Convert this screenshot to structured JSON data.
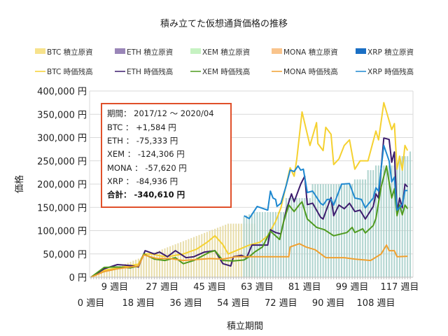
{
  "chart_data": {
    "type": "bar+line",
    "title": "積み立てた仮想通貨価格の推移",
    "xlabel": "積立期間",
    "ylabel": "価格",
    "ylim": [
      0,
      400000
    ],
    "yticks": [
      0,
      50000,
      100000,
      150000,
      200000,
      250000,
      300000,
      350000,
      400000
    ],
    "ytick_suffix": " 円",
    "xlim": [
      0,
      121
    ],
    "xticks": [
      0,
      9,
      18,
      27,
      36,
      45,
      54,
      63,
      72,
      81,
      90,
      99,
      108,
      117
    ],
    "xtick_suffix": " 週目",
    "grid": true,
    "legend_placement": "top",
    "legend": [
      {
        "label": "BTC  積立原資",
        "kind": "bar",
        "color": "#f7e28c"
      },
      {
        "label": "ETH  積立原資",
        "kind": "bar",
        "color": "#9a86b8"
      },
      {
        "label": "XEM  積立原資",
        "kind": "bar",
        "color": "#c6f2c2"
      },
      {
        "label": "MONA  積立原資",
        "kind": "bar",
        "color": "#f9c48c"
      },
      {
        "label": "XRP  積立原資",
        "kind": "bar",
        "color": "#1a6fc4"
      },
      {
        "label": "BTC  時価残高",
        "kind": "line",
        "color": "#f5d130"
      },
      {
        "label": "ETH  時価残高",
        "kind": "line",
        "color": "#3c1c6e"
      },
      {
        "label": "XEM  時価残高",
        "kind": "line",
        "color": "#4e9a1e"
      },
      {
        "label": "MONA  時価残高",
        "kind": "line",
        "color": "#f0a030"
      },
      {
        "label": "XRP  時価残高",
        "kind": "line",
        "color": "#1e88d0"
      }
    ],
    "bar_series": [
      {
        "name": "BTC  積立原資",
        "color": "#e6d9a0",
        "points": [
          [
            0,
            0
          ],
          [
            52,
            115000
          ],
          [
            62,
            115000
          ]
        ]
      },
      {
        "name": "XRP  積立原資",
        "color": "#a7cfca",
        "points": [
          [
            58,
            130000
          ],
          [
            62,
            140000
          ],
          [
            73,
            140000
          ],
          [
            74,
            170000
          ],
          [
            83,
            170000
          ],
          [
            84,
            200000
          ],
          [
            99,
            200000
          ],
          [
            100,
            210000
          ],
          [
            104,
            210000
          ],
          [
            105,
            230000
          ],
          [
            107,
            230000
          ],
          [
            108,
            240000
          ],
          [
            116,
            240000
          ],
          [
            117,
            260000
          ],
          [
            120,
            260000
          ],
          [
            121,
            270000
          ]
        ]
      }
    ],
    "line_series": [
      {
        "name": "BTC  時価残高",
        "color": "#f5d130",
        "points": [
          [
            0,
            0
          ],
          [
            5,
            15000
          ],
          [
            10,
            20000
          ],
          [
            15,
            25000
          ],
          [
            18,
            28000
          ],
          [
            20,
            50000
          ],
          [
            23,
            50000
          ],
          [
            27,
            45000
          ],
          [
            30,
            45000
          ],
          [
            35,
            50000
          ],
          [
            40,
            60000
          ],
          [
            44,
            75000
          ],
          [
            47,
            89000
          ],
          [
            50,
            70000
          ],
          [
            52,
            50000
          ],
          [
            55,
            57000
          ],
          [
            60,
            69000
          ],
          [
            64,
            75000
          ],
          [
            67,
            89000
          ],
          [
            70,
            120000
          ],
          [
            72,
            149000
          ],
          [
            75.5,
            235000
          ],
          [
            77,
            217000
          ],
          [
            78,
            254000
          ],
          [
            80,
            355000
          ],
          [
            83,
            283000
          ],
          [
            85.5,
            332000
          ],
          [
            86,
            287000
          ],
          [
            88,
            272000
          ],
          [
            89,
            322000
          ],
          [
            91,
            307000
          ],
          [
            92,
            242000
          ],
          [
            94,
            254000
          ],
          [
            96,
            283000
          ],
          [
            98,
            295000
          ],
          [
            100,
            232000
          ],
          [
            102,
            250000
          ],
          [
            105,
            250000
          ],
          [
            108,
            314000
          ],
          [
            109,
            295000
          ],
          [
            111,
            375000
          ],
          [
            114,
            317000
          ],
          [
            115,
            330000
          ],
          [
            116,
            232000
          ],
          [
            117,
            260000
          ],
          [
            118,
            230000
          ],
          [
            119,
            283000
          ],
          [
            120,
            272000
          ]
        ]
      },
      {
        "name": "ETH  時価残高",
        "color": "#3c1c6e",
        "points": [
          [
            0,
            0
          ],
          [
            5,
            18000
          ],
          [
            10,
            27000
          ],
          [
            15,
            25000
          ],
          [
            18,
            22000
          ],
          [
            20.5,
            57000
          ],
          [
            24,
            50000
          ],
          [
            26,
            54000
          ],
          [
            29,
            44000
          ],
          [
            32,
            57000
          ],
          [
            36,
            42000
          ],
          [
            39,
            44000
          ],
          [
            43,
            54000
          ],
          [
            47,
            57000
          ],
          [
            50,
            29000
          ],
          [
            53,
            24000
          ],
          [
            54,
            44000
          ],
          [
            57,
            47000
          ],
          [
            59,
            42000
          ],
          [
            61,
            69000
          ],
          [
            63,
            69000
          ],
          [
            67,
            69000
          ],
          [
            68,
            102000
          ],
          [
            70,
            96000
          ],
          [
            72,
            93000
          ],
          [
            74,
            144000
          ],
          [
            76,
            179000
          ],
          [
            77,
            162000
          ],
          [
            79.5,
            200000
          ],
          [
            81,
            217000
          ],
          [
            82,
            156000
          ],
          [
            84,
            159000
          ],
          [
            87,
            129000
          ],
          [
            88,
            125000
          ],
          [
            89,
            141000
          ],
          [
            91,
            171000
          ],
          [
            92,
            132000
          ],
          [
            94,
            155000
          ],
          [
            96,
            147000
          ],
          [
            98,
            159000
          ],
          [
            100,
            141000
          ],
          [
            102,
            144000
          ],
          [
            104,
            125000
          ],
          [
            107,
            152000
          ],
          [
            108,
            179000
          ],
          [
            109,
            170000
          ],
          [
            111,
            299000
          ],
          [
            113,
            296000
          ],
          [
            114,
            247000
          ],
          [
            115,
            269000
          ],
          [
            116,
            141000
          ],
          [
            117,
            170000
          ],
          [
            118,
            149000
          ],
          [
            119,
            200000
          ],
          [
            120,
            194000
          ]
        ]
      },
      {
        "name": "XEM  時価残高",
        "color": "#4e9a1e",
        "points": [
          [
            0,
            0
          ],
          [
            5,
            21000
          ],
          [
            10,
            22000
          ],
          [
            15,
            20000
          ],
          [
            18,
            24000
          ],
          [
            20,
            50000
          ],
          [
            24,
            39000
          ],
          [
            28,
            36000
          ],
          [
            32,
            42000
          ],
          [
            35,
            29000
          ],
          [
            39,
            36000
          ],
          [
            41,
            42000
          ],
          [
            45,
            54000
          ],
          [
            47,
            57000
          ],
          [
            50,
            36000
          ],
          [
            54,
            35000
          ],
          [
            58,
            37000
          ],
          [
            60,
            44000
          ],
          [
            62,
            54000
          ],
          [
            65,
            65000
          ],
          [
            68,
            99000
          ],
          [
            71.5,
            81000
          ],
          [
            73,
            119000
          ],
          [
            75,
            155000
          ],
          [
            77,
            141000
          ],
          [
            79,
            156000
          ],
          [
            80,
            162000
          ],
          [
            82,
            125000
          ],
          [
            85.5,
            107000
          ],
          [
            88.5,
            102000
          ],
          [
            92,
            89000
          ],
          [
            97,
            96000
          ],
          [
            99,
            107000
          ],
          [
            100,
            96000
          ],
          [
            103,
            104000
          ],
          [
            104,
            95000
          ],
          [
            107,
            111000
          ],
          [
            108,
            126000
          ],
          [
            110,
            194000
          ],
          [
            112,
            239000
          ],
          [
            114,
            170000
          ],
          [
            115,
            190000
          ],
          [
            116,
            132000
          ],
          [
            117,
            155000
          ],
          [
            118,
            134000
          ],
          [
            119,
            155000
          ],
          [
            120,
            147000
          ]
        ]
      },
      {
        "name": "MONA  時価残高",
        "color": "#f0a030",
        "points": [
          [
            0,
            0
          ],
          [
            5,
            12000
          ],
          [
            10,
            18000
          ],
          [
            15,
            22000
          ],
          [
            18,
            24000
          ],
          [
            20,
            48000
          ],
          [
            25,
            40000
          ],
          [
            30,
            40000
          ],
          [
            35,
            36000
          ],
          [
            40,
            38000
          ],
          [
            45,
            40000
          ],
          [
            50,
            39000
          ],
          [
            55,
            44000
          ],
          [
            75,
            44000
          ],
          [
            75.5,
            65000
          ],
          [
            79,
            72000
          ],
          [
            81.5,
            65000
          ],
          [
            85,
            59000
          ],
          [
            89,
            42000
          ],
          [
            96,
            42000
          ],
          [
            100,
            39000
          ],
          [
            106,
            36000
          ],
          [
            110,
            50000
          ],
          [
            112,
            69000
          ],
          [
            113,
            57000
          ],
          [
            115,
            57000
          ],
          [
            116,
            44000
          ],
          [
            120,
            45000
          ]
        ]
      },
      {
        "name": "XRP  時価残高",
        "color": "#1e88d0",
        "points": [
          [
            58,
            132000
          ],
          [
            60,
            126000
          ],
          [
            63,
            152000
          ],
          [
            64.5,
            149000
          ],
          [
            67,
            144000
          ],
          [
            68,
            185000
          ],
          [
            69,
            170000
          ],
          [
            70,
            167000
          ],
          [
            70.5,
            152000
          ],
          [
            72,
            159000
          ],
          [
            74,
            197000
          ],
          [
            75.5,
            230000
          ],
          [
            77,
            227000
          ],
          [
            78.5,
            239000
          ],
          [
            79.5,
            230000
          ],
          [
            80.5,
            232000
          ],
          [
            82,
            182000
          ],
          [
            84,
            185000
          ],
          [
            87,
            159000
          ],
          [
            88,
            155000
          ],
          [
            89.5,
            167000
          ],
          [
            91,
            167000
          ],
          [
            92,
            155000
          ],
          [
            95,
            200000
          ],
          [
            98,
            201000
          ],
          [
            100,
            170000
          ],
          [
            102.5,
            167000
          ],
          [
            104,
            149000
          ],
          [
            107,
            170000
          ],
          [
            108,
            192000
          ],
          [
            109,
            185000
          ],
          [
            111,
            283000
          ],
          [
            113,
            250000
          ],
          [
            114,
            205000
          ],
          [
            115,
            215000
          ],
          [
            116,
            144000
          ],
          [
            118,
            156000
          ],
          [
            119,
            186000
          ],
          [
            120,
            186000
          ]
        ]
      }
    ]
  },
  "annotation": {
    "lines": [
      "期間： 2017/12 ～ 2020/04",
      "BTC ： +1,584 円",
      "ETH ： -75,333 円",
      "XEM ： -124,306 円",
      "MONA ： -57,620 円",
      "XRP ： -84,936 円"
    ],
    "total": "合計： -340,610 円",
    "border_color": "#e0502a"
  }
}
